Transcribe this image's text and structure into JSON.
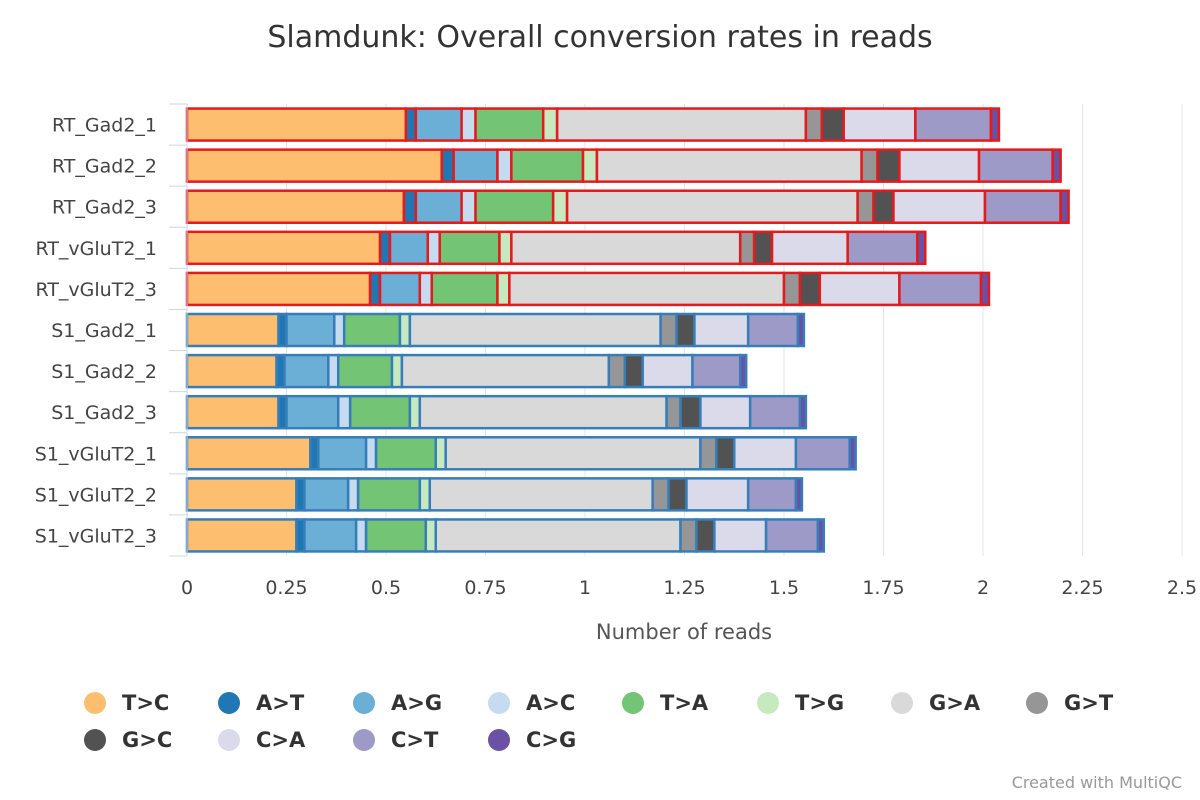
{
  "chart_data": {
    "type": "bar",
    "orientation": "horizontal",
    "stacked": true,
    "title": "Slamdunk: Overall conversion rates in reads",
    "xlabel": "Number of reads",
    "xlim": [
      0,
      2.5
    ],
    "x_ticks": [
      0,
      0.25,
      0.5,
      0.75,
      1,
      1.25,
      1.5,
      1.75,
      2,
      2.25,
      2.5
    ],
    "x_tick_labels": [
      "0",
      "0.25",
      "0.5",
      "0.75",
      "1",
      "1.25",
      "1.5",
      "1.75",
      "2",
      "2.25",
      "2.5"
    ],
    "grid": true,
    "legend_position": "bottom",
    "categories": [
      "RT_Gad2_1",
      "RT_Gad2_2",
      "RT_Gad2_3",
      "RT_vGluT2_1",
      "RT_vGluT2_3",
      "S1_Gad2_1",
      "S1_Gad2_2",
      "S1_Gad2_3",
      "S1_vGluT2_1",
      "S1_vGluT2_2",
      "S1_vGluT2_3"
    ],
    "category_groups": [
      "RT",
      "RT",
      "RT",
      "RT",
      "RT",
      "S1",
      "S1",
      "S1",
      "S1",
      "S1",
      "S1"
    ],
    "group_outline_colors": {
      "RT": "#e41a1c",
      "S1": "#377eb8"
    },
    "series": [
      {
        "name": "T>C",
        "color": "#fdbf6f",
        "values": [
          0.55,
          0.64,
          0.545,
          0.485,
          0.46,
          0.23,
          0.225,
          0.23,
          0.31,
          0.275,
          0.275
        ]
      },
      {
        "name": "A>T",
        "color": "#1f78b4",
        "values": [
          0.025,
          0.03,
          0.03,
          0.025,
          0.025,
          0.02,
          0.02,
          0.02,
          0.02,
          0.02,
          0.02
        ]
      },
      {
        "name": "A>G",
        "color": "#6baed6",
        "values": [
          0.115,
          0.11,
          0.115,
          0.095,
          0.1,
          0.12,
          0.11,
          0.13,
          0.12,
          0.11,
          0.13
        ]
      },
      {
        "name": "A>C",
        "color": "#c6dbef",
        "values": [
          0.035,
          0.035,
          0.035,
          0.03,
          0.03,
          0.025,
          0.025,
          0.03,
          0.025,
          0.025,
          0.025
        ]
      },
      {
        "name": "T>A",
        "color": "#74c476",
        "values": [
          0.17,
          0.18,
          0.195,
          0.15,
          0.165,
          0.14,
          0.135,
          0.15,
          0.15,
          0.155,
          0.15
        ]
      },
      {
        "name": "T>G",
        "color": "#c7e9c0",
        "values": [
          0.035,
          0.035,
          0.035,
          0.03,
          0.03,
          0.025,
          0.025,
          0.025,
          0.025,
          0.025,
          0.025
        ]
      },
      {
        "name": "G>A",
        "color": "#d9d9d9",
        "values": [
          0.625,
          0.665,
          0.73,
          0.575,
          0.69,
          0.63,
          0.52,
          0.62,
          0.64,
          0.56,
          0.615
        ]
      },
      {
        "name": "G>T",
        "color": "#969696",
        "values": [
          0.04,
          0.04,
          0.04,
          0.035,
          0.04,
          0.04,
          0.04,
          0.035,
          0.04,
          0.04,
          0.04
        ]
      },
      {
        "name": "G>C",
        "color": "#525252",
        "values": [
          0.055,
          0.055,
          0.05,
          0.045,
          0.05,
          0.045,
          0.045,
          0.05,
          0.045,
          0.045,
          0.045
        ]
      },
      {
        "name": "C>A",
        "color": "#dadaeb",
        "values": [
          0.18,
          0.2,
          0.23,
          0.19,
          0.2,
          0.135,
          0.125,
          0.125,
          0.155,
          0.155,
          0.13
        ]
      },
      {
        "name": "C>T",
        "color": "#9e9ac8",
        "values": [
          0.19,
          0.185,
          0.19,
          0.175,
          0.205,
          0.125,
          0.12,
          0.125,
          0.135,
          0.12,
          0.13
        ]
      },
      {
        "name": "C>G",
        "color": "#6a51a3",
        "values": [
          0.02,
          0.02,
          0.02,
          0.02,
          0.02,
          0.015,
          0.015,
          0.015,
          0.015,
          0.015,
          0.015
        ]
      }
    ]
  },
  "credit": "Created with MultiQC"
}
